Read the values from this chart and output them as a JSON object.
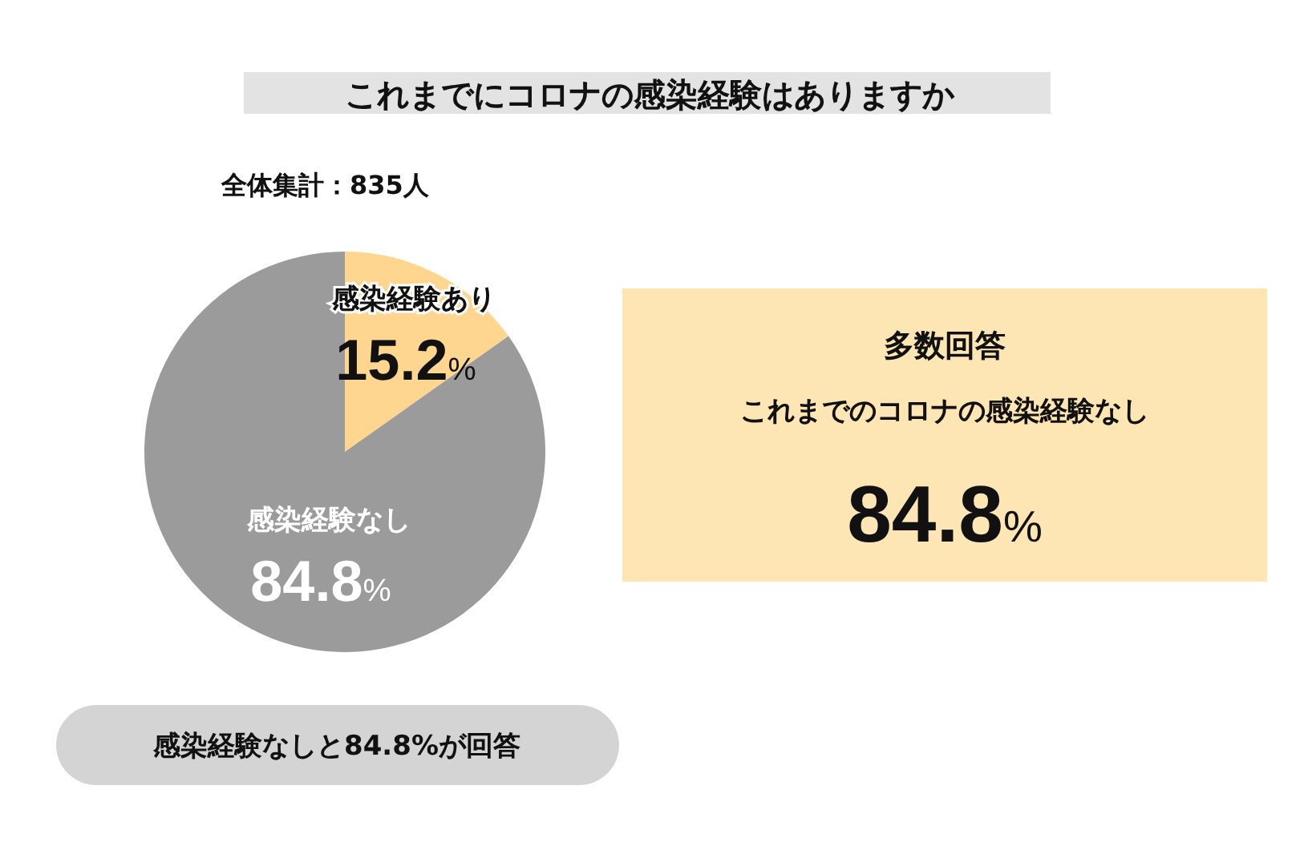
{
  "chart_data": {
    "type": "pie",
    "title": "これまでにコロナの感染経験はありますか",
    "subtitle": "全体集計：835人",
    "categories": [
      "感染経験あり",
      "感染経験なし"
    ],
    "values": [
      15.2,
      84.8
    ],
    "colors": [
      "#ffd68f",
      "#9b9b9b"
    ],
    "value_labels": [
      "15.2%",
      "84.8%"
    ],
    "annotations": [
      "多数回答",
      "これまでのコロナの感染経験なし",
      "84.8%",
      "感染経験なしと84.8%が回答"
    ]
  }
}
